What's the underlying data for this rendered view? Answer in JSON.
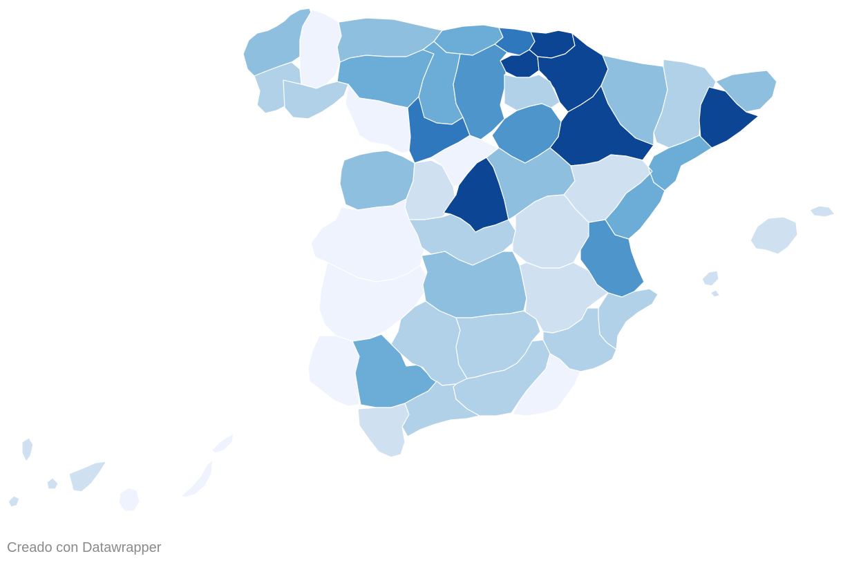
{
  "credit": "Creado con Datawrapper",
  "palette": [
    "#eef3fd",
    "#cfe0f1",
    "#b0d1e8",
    "#8fbfdf",
    "#6badd6",
    "#4d95ca",
    "#2f78bd",
    "#0b4594"
  ],
  "regions": [
    {
      "id": "a-coruna",
      "level": 3
    },
    {
      "id": "lugo",
      "level": 0
    },
    {
      "id": "pontevedra",
      "level": 2
    },
    {
      "id": "ourense",
      "level": 2
    },
    {
      "id": "asturias",
      "level": 3
    },
    {
      "id": "cantabria",
      "level": 4
    },
    {
      "id": "vizcaya",
      "level": 6
    },
    {
      "id": "guipuzcoa",
      "level": 7
    },
    {
      "id": "alava",
      "level": 7
    },
    {
      "id": "navarra",
      "level": 7
    },
    {
      "id": "leon",
      "level": 4
    },
    {
      "id": "palencia",
      "level": 4
    },
    {
      "id": "burgos",
      "level": 5
    },
    {
      "id": "la-rioja",
      "level": 2
    },
    {
      "id": "zamora",
      "level": 0
    },
    {
      "id": "valladolid",
      "level": 6
    },
    {
      "id": "soria",
      "level": 5
    },
    {
      "id": "zaragoza",
      "level": 7
    },
    {
      "id": "huesca",
      "level": 3
    },
    {
      "id": "lleida",
      "level": 2
    },
    {
      "id": "girona",
      "level": 3
    },
    {
      "id": "barcelona",
      "level": 7
    },
    {
      "id": "tarragona",
      "level": 4
    },
    {
      "id": "salamanca",
      "level": 3
    },
    {
      "id": "avila",
      "level": 1
    },
    {
      "id": "segovia",
      "level": 0
    },
    {
      "id": "madrid",
      "level": 7
    },
    {
      "id": "guadalajara",
      "level": 3
    },
    {
      "id": "teruel",
      "level": 1
    },
    {
      "id": "castellon",
      "level": 4
    },
    {
      "id": "caceres",
      "level": 0
    },
    {
      "id": "toledo",
      "level": 2
    },
    {
      "id": "cuenca",
      "level": 1
    },
    {
      "id": "valencia",
      "level": 5
    },
    {
      "id": "badajoz",
      "level": 0
    },
    {
      "id": "ciudad-real",
      "level": 3
    },
    {
      "id": "albacete",
      "level": 1
    },
    {
      "id": "alicante",
      "level": 2
    },
    {
      "id": "huelva",
      "level": 0
    },
    {
      "id": "sevilla",
      "level": 4
    },
    {
      "id": "cordoba",
      "level": 2
    },
    {
      "id": "jaen",
      "level": 2
    },
    {
      "id": "granada",
      "level": 2
    },
    {
      "id": "murcia",
      "level": 2
    },
    {
      "id": "almeria",
      "level": 0
    },
    {
      "id": "cadiz",
      "level": 1
    },
    {
      "id": "malaga",
      "level": 2
    },
    {
      "id": "baleares",
      "level": 1
    },
    {
      "id": "canarias-west",
      "level": 1
    },
    {
      "id": "canarias-east",
      "level": 0
    }
  ]
}
